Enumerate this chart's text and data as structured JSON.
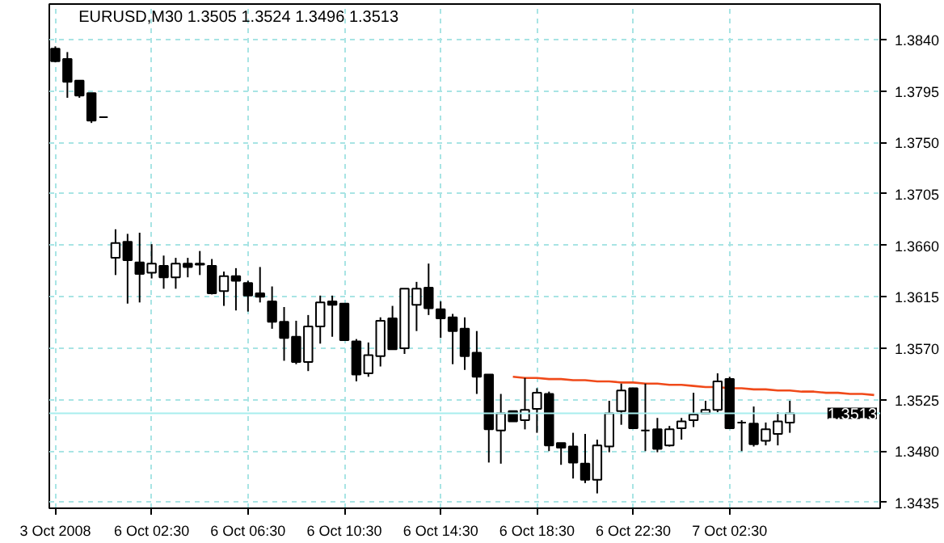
{
  "chart_data": {
    "type": "candlestick",
    "title": "EURUSD,M30  1.3505 1.3524 1.3496 1.3513",
    "categories": [
      "3 Oct 2008",
      null,
      null,
      null,
      null,
      null,
      null,
      null,
      "6 Oct 02:30",
      null,
      null,
      null,
      null,
      null,
      null,
      null,
      "6 Oct 06:30",
      null,
      null,
      null,
      null,
      null,
      null,
      null,
      "6 Oct 10:30",
      null,
      null,
      null,
      null,
      null,
      null,
      null,
      "6 Oct 14:30",
      null,
      null,
      null,
      null,
      null,
      null,
      null,
      "6 Oct 18:30",
      null,
      null,
      null,
      null,
      null,
      null,
      null,
      "6 Oct 22:30",
      null,
      null,
      null,
      null,
      null,
      null,
      null,
      "7 Oct 02:30",
      null,
      null,
      null,
      null,
      null,
      null,
      null,
      null,
      null,
      null,
      null,
      null
    ],
    "ohlc": [
      [
        1.3832,
        1.3834,
        1.382,
        1.3821
      ],
      [
        1.3823,
        1.3829,
        1.3789,
        1.3803
      ],
      [
        1.3804,
        1.3804,
        1.3789,
        1.3791
      ],
      [
        1.3793,
        1.3793,
        1.3767,
        1.3769
      ],
      [
        1.3772,
        1.3772,
        1.3772,
        1.3772
      ],
      [
        1.3649,
        1.3674,
        1.3634,
        1.3662
      ],
      [
        1.3663,
        1.367,
        1.3609,
        1.3647
      ],
      [
        1.3645,
        1.3671,
        1.361,
        1.3635
      ],
      [
        1.3636,
        1.3661,
        1.3631,
        1.3644
      ],
      [
        1.3642,
        1.3651,
        1.3622,
        1.3632
      ],
      [
        1.3632,
        1.3649,
        1.3622,
        1.3644
      ],
      [
        1.3644,
        1.3649,
        1.3632,
        1.3641
      ],
      [
        1.3644,
        1.3655,
        1.3634,
        1.3643
      ],
      [
        1.3642,
        1.3648,
        1.3617,
        1.3618
      ],
      [
        1.362,
        1.3637,
        1.3607,
        1.3633
      ],
      [
        1.3633,
        1.364,
        1.3603,
        1.3629
      ],
      [
        1.3627,
        1.3629,
        1.3602,
        1.3616
      ],
      [
        1.3618,
        1.3641,
        1.361,
        1.3615
      ],
      [
        1.3611,
        1.3624,
        1.3587,
        1.3593
      ],
      [
        1.3593,
        1.3606,
        1.3559,
        1.3579
      ],
      [
        1.358,
        1.3594,
        1.3556,
        1.3558
      ],
      [
        1.3558,
        1.3599,
        1.355,
        1.3589
      ],
      [
        1.3589,
        1.3616,
        1.3574,
        1.361
      ],
      [
        1.3611,
        1.3616,
        1.358,
        1.3608
      ],
      [
        1.3609,
        1.3609,
        1.3577,
        1.3577
      ],
      [
        1.3576,
        1.3578,
        1.3541,
        1.3547
      ],
      [
        1.3548,
        1.3575,
        1.3545,
        1.3564
      ],
      [
        1.3563,
        1.3597,
        1.3554,
        1.3594
      ],
      [
        1.3596,
        1.3607,
        1.3569,
        1.3569
      ],
      [
        1.357,
        1.3622,
        1.3565,
        1.3622
      ],
      [
        1.3608,
        1.3628,
        1.3585,
        1.3622
      ],
      [
        1.3623,
        1.3644,
        1.3599,
        1.3605
      ],
      [
        1.3604,
        1.3611,
        1.3579,
        1.3596
      ],
      [
        1.3597,
        1.36,
        1.3556,
        1.3585
      ],
      [
        1.3587,
        1.3597,
        1.3551,
        1.3563
      ],
      [
        1.3566,
        1.3585,
        1.353,
        1.3545
      ],
      [
        1.3547,
        1.3547,
        1.347,
        1.3499
      ],
      [
        1.3498,
        1.353,
        1.3469,
        1.3513
      ],
      [
        1.3515,
        1.3515,
        1.3506,
        1.3506
      ],
      [
        1.3507,
        1.3544,
        1.3499,
        1.3516
      ],
      [
        1.3517,
        1.3535,
        1.3496,
        1.3531
      ],
      [
        1.353,
        1.3532,
        1.348,
        1.3485
      ],
      [
        1.3487,
        1.3487,
        1.3468,
        1.3483
      ],
      [
        1.3484,
        1.3496,
        1.3456,
        1.347
      ],
      [
        1.3469,
        1.3495,
        1.3452,
        1.3455
      ],
      [
        1.3455,
        1.349,
        1.3443,
        1.3485
      ],
      [
        1.3484,
        1.3524,
        1.3479,
        1.3513
      ],
      [
        1.3515,
        1.3539,
        1.3503,
        1.3533
      ],
      [
        1.3535,
        1.3535,
        1.35,
        1.35
      ],
      [
        1.3498,
        1.3539,
        1.348,
        1.3498
      ],
      [
        1.3499,
        1.3509,
        1.3479,
        1.3482
      ],
      [
        1.3485,
        1.3502,
        1.3484,
        1.3499
      ],
      [
        1.35,
        1.3509,
        1.349,
        1.3506
      ],
      [
        1.3507,
        1.3531,
        1.3501,
        1.3512
      ],
      [
        1.3513,
        1.3524,
        1.3513,
        1.3516
      ],
      [
        1.3516,
        1.3548,
        1.3514,
        1.3541
      ],
      [
        1.3543,
        1.3545,
        1.35,
        1.35
      ],
      [
        1.3505,
        1.3507,
        1.348,
        1.3505
      ],
      [
        1.3504,
        1.3519,
        1.3484,
        1.3486
      ],
      [
        1.3489,
        1.3505,
        1.3485,
        1.3499
      ],
      [
        1.3495,
        1.3514,
        1.3485,
        1.3506
      ],
      [
        1.3505,
        1.3524,
        1.3496,
        1.3513
      ],
      null,
      null,
      null,
      null,
      null,
      null,
      null
    ],
    "series": [
      {
        "type": "line",
        "color": "#f04a1a",
        "values": [
          null,
          null,
          null,
          null,
          null,
          null,
          null,
          null,
          null,
          null,
          null,
          null,
          null,
          null,
          null,
          null,
          null,
          null,
          null,
          null,
          null,
          null,
          null,
          null,
          null,
          null,
          null,
          null,
          null,
          null,
          null,
          null,
          null,
          null,
          null,
          null,
          null,
          null,
          1.3545,
          1.3544,
          1.3544,
          1.3543,
          1.3543,
          1.3542,
          1.3542,
          1.3541,
          1.3541,
          1.354,
          1.354,
          1.3539,
          1.3539,
          1.3538,
          1.3538,
          1.3537,
          1.3536,
          1.3536,
          1.3535,
          1.3535,
          1.3534,
          1.3534,
          1.3533,
          1.3533,
          1.3532,
          1.3532,
          1.3531,
          1.3531,
          1.353,
          1.353,
          1.3529
        ]
      }
    ],
    "ylim": [
      1.343,
      1.3871
    ],
    "yticks": [
      {
        "value": 1.3435,
        "label": "1.3435"
      },
      {
        "value": 1.348,
        "label": "1.3480"
      },
      {
        "value": 1.3525,
        "label": "1.3525"
      },
      {
        "value": 1.357,
        "label": "1.3570"
      },
      {
        "value": 1.3615,
        "label": "1.3615"
      },
      {
        "value": 1.366,
        "label": "1.3660"
      },
      {
        "value": 1.3705,
        "label": "1.3705"
      },
      {
        "value": 1.375,
        "label": "1.3750"
      },
      {
        "value": 1.3795,
        "label": "1.3795"
      },
      {
        "value": 1.384,
        "label": "1.3840"
      }
    ],
    "ref_lines": [
      {
        "axis": "y",
        "value": 1.3513,
        "label": "1.3513",
        "color": "#a8eeee"
      }
    ],
    "grid": true
  }
}
